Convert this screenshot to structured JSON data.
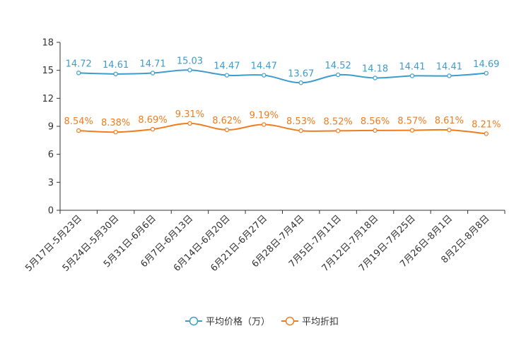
{
  "chart_data": {
    "type": "line",
    "title": "",
    "xlabel": "",
    "ylabel": "",
    "ylim": [
      0,
      18
    ],
    "yticks": [
      0,
      3,
      6,
      9,
      12,
      15,
      18
    ],
    "categories": [
      "5月17日-5月23日",
      "5月24日-5月30日",
      "5月31日-6月6日",
      "6月7日-6月13日",
      "6月14日-6月20日",
      "6月21日-6月27日",
      "6月28日-7月4日",
      "7月5日-7月11日",
      "7月12日-7月18日",
      "7月19日-7月25日",
      "7月26日-8月1日",
      "8月2日-8月8日"
    ],
    "series": [
      {
        "name": "平均价格（万）",
        "color": "#3d9ccb",
        "values": [
          14.72,
          14.61,
          14.71,
          15.03,
          14.47,
          14.47,
          13.67,
          14.52,
          14.18,
          14.41,
          14.41,
          14.69
        ],
        "labels": [
          "14.72",
          "14.61",
          "14.71",
          "15.03",
          "14.47",
          "14.47",
          "13.67",
          "14.52",
          "14.18",
          "14.41",
          "14.41",
          "14.69"
        ]
      },
      {
        "name": "平均折扣",
        "color": "#f07c1e",
        "values": [
          8.54,
          8.38,
          8.69,
          9.31,
          8.62,
          9.19,
          8.53,
          8.52,
          8.56,
          8.57,
          8.61,
          8.21
        ],
        "labels": [
          "8.54%",
          "8.38%",
          "8.69%",
          "9.31%",
          "8.62%",
          "9.19%",
          "8.53%",
          "8.52%",
          "8.56%",
          "8.57%",
          "8.61%",
          "8.21%"
        ]
      }
    ],
    "legend": "bottom-center",
    "grid": false
  }
}
